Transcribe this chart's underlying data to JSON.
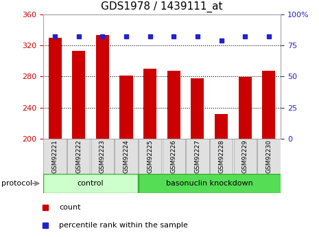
{
  "title": "GDS1978 / 1439111_at",
  "categories": [
    "GSM92221",
    "GSM92222",
    "GSM92223",
    "GSM92224",
    "GSM92225",
    "GSM92226",
    "GSM92227",
    "GSM92228",
    "GSM92229",
    "GSM92230"
  ],
  "bar_values": [
    330,
    313,
    333,
    281,
    290,
    287,
    278,
    232,
    279,
    287
  ],
  "percentile_values": [
    82,
    82,
    82,
    82,
    82,
    82,
    82,
    79,
    82,
    82
  ],
  "ylim_left": [
    200,
    360
  ],
  "ylim_right": [
    0,
    100
  ],
  "bar_color": "#cc0000",
  "dot_color": "#2222cc",
  "grid_color": "#000000",
  "left_tick_color": "#cc0000",
  "right_tick_color": "#2222cc",
  "title_fontsize": 11,
  "tick_fontsize": 8,
  "cat_fontsize": 6.5,
  "groups": [
    {
      "label": "control",
      "start": 0,
      "end": 3
    },
    {
      "label": "basonuclin knockdown",
      "start": 4,
      "end": 9
    }
  ],
  "group_color_light": "#ccffcc",
  "group_color_dark": "#55dd55",
  "group_border_color": "#33aa33",
  "protocol_label": "protocol",
  "legend_items": [
    {
      "color": "#cc0000",
      "label": "count"
    },
    {
      "color": "#2222cc",
      "label": "percentile rank within the sample"
    }
  ],
  "yticks_left": [
    200,
    240,
    280,
    320,
    360
  ],
  "yticks_right": [
    0,
    25,
    50,
    75,
    100
  ],
  "bg_color": "#ffffff",
  "spine_color": "#aaaaaa"
}
